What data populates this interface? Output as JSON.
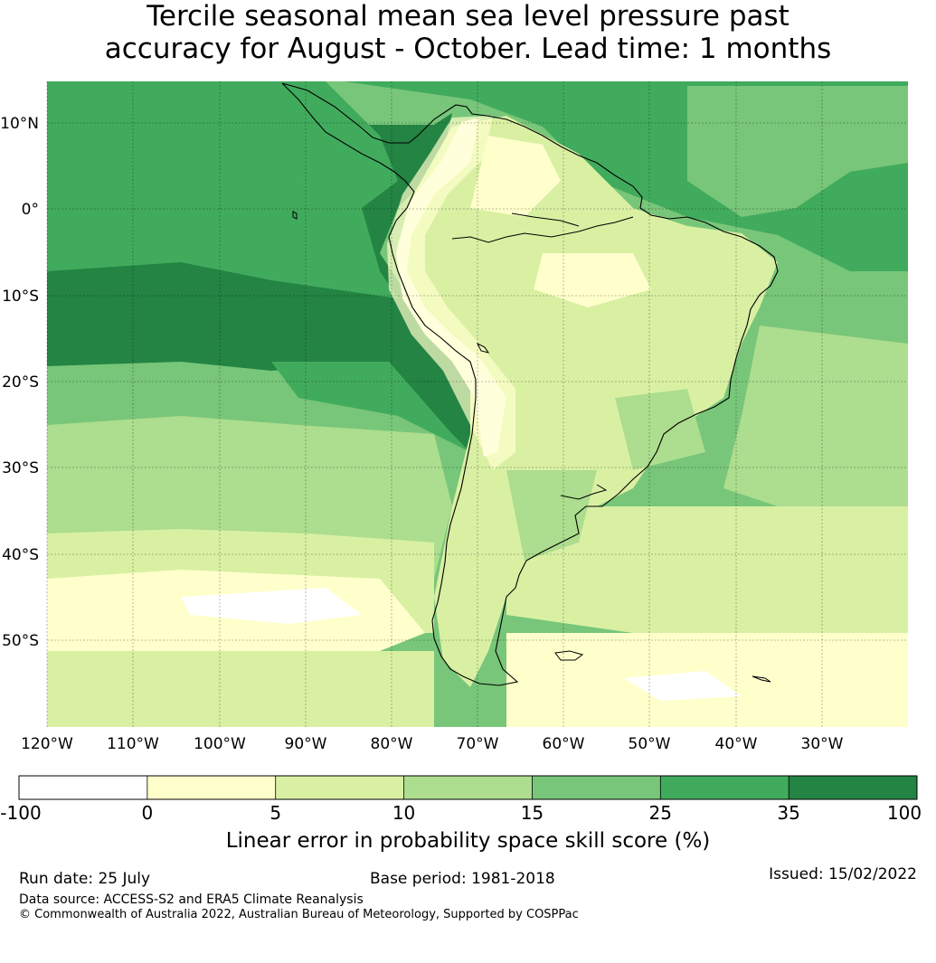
{
  "title": {
    "line1": "Tercile seasonal mean sea level pressure past",
    "line2": "accuracy for August - October. Lead time: 1 months"
  },
  "map": {
    "lat_labels": [
      "10°N",
      "0°",
      "10°S",
      "20°S",
      "30°S",
      "40°S",
      "50°S"
    ],
    "lon_labels": [
      "120°W",
      "110°W",
      "100°W",
      "90°W",
      "80°W",
      "70°W",
      "60°W",
      "50°W",
      "40°W",
      "30°W"
    ],
    "colors": {
      "c_neg": "#ffffff",
      "c0": "#ffffcc",
      "c5": "#d9f0a3",
      "c10": "#addd8e",
      "c15": "#78c679",
      "c25": "#41ab5d",
      "c35": "#238443"
    }
  },
  "colorbar": {
    "ticks": [
      "-100",
      "0",
      "5",
      "10",
      "15",
      "25",
      "35",
      "100"
    ],
    "colors": [
      "#ffffff",
      "#ffffcc",
      "#d9f0a3",
      "#addd8e",
      "#78c679",
      "#41ab5d",
      "#238443"
    ],
    "label": "Linear error in probability space skill score (%)"
  },
  "footer": {
    "run_date": "Run date: 25 July",
    "base_period": "Base period: 1981-2018",
    "issued": "Issued: 15/02/2022",
    "data_source": "Data source: ACCESS-S2 and ERA5 Climate Reanalysis",
    "copyright": "© Commonwealth of Australia 2022, Australian Bureau of Meteorology, Supported by COSPPac"
  }
}
